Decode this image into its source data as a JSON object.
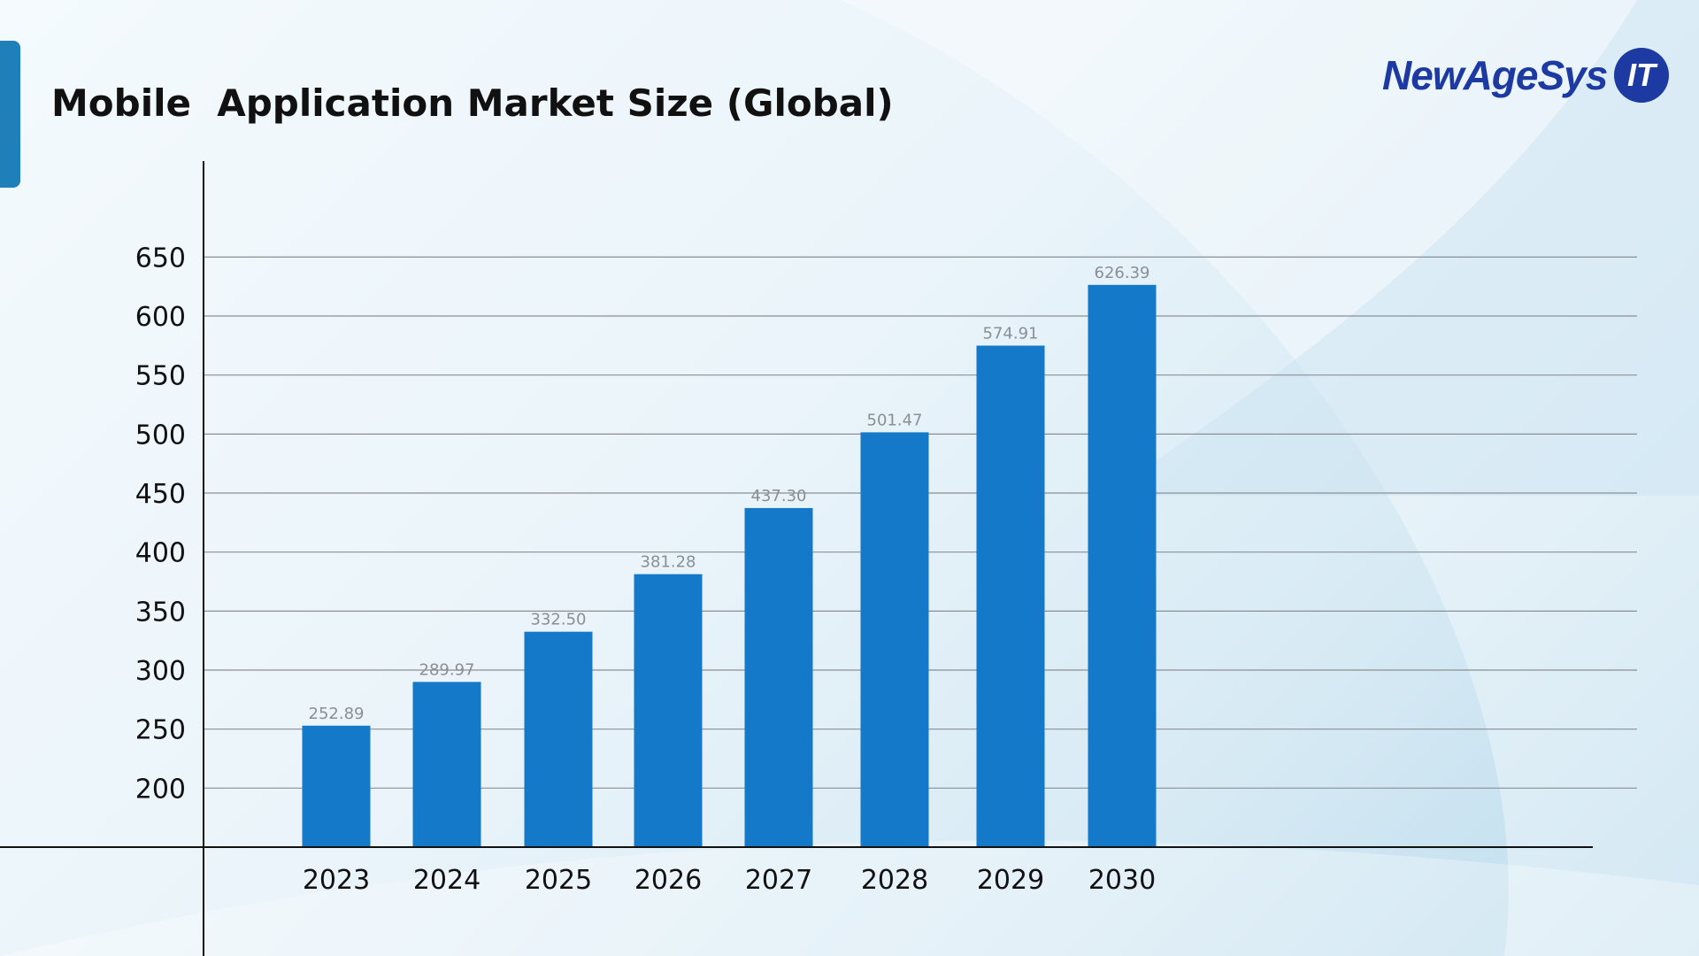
{
  "title": "Mobile  Application Market Size (Global)",
  "logo": {
    "text": "NewAgeSys",
    "badge": "IT"
  },
  "colors": {
    "bar": "#1479c8",
    "accent": "#1f7fb9",
    "logo": "#1d3aa3"
  },
  "chart_data": {
    "type": "bar",
    "title": "Mobile  Application Market Size (Global)",
    "categories": [
      "2023",
      "2024",
      "2025",
      "2026",
      "2027",
      "2028",
      "2029",
      "2030"
    ],
    "values": [
      252.89,
      289.97,
      332.5,
      381.28,
      437.3,
      501.47,
      574.91,
      626.39
    ],
    "data_labels": [
      "252.89",
      "289.97",
      "332.50",
      "381.28",
      "437.30",
      "501.47",
      "574.91",
      "626.39"
    ],
    "yticks": [
      200,
      250,
      300,
      350,
      400,
      450,
      500,
      550,
      600,
      650
    ],
    "ylim": [
      150,
      650
    ],
    "grid": true,
    "xlabel": "",
    "ylabel": ""
  }
}
